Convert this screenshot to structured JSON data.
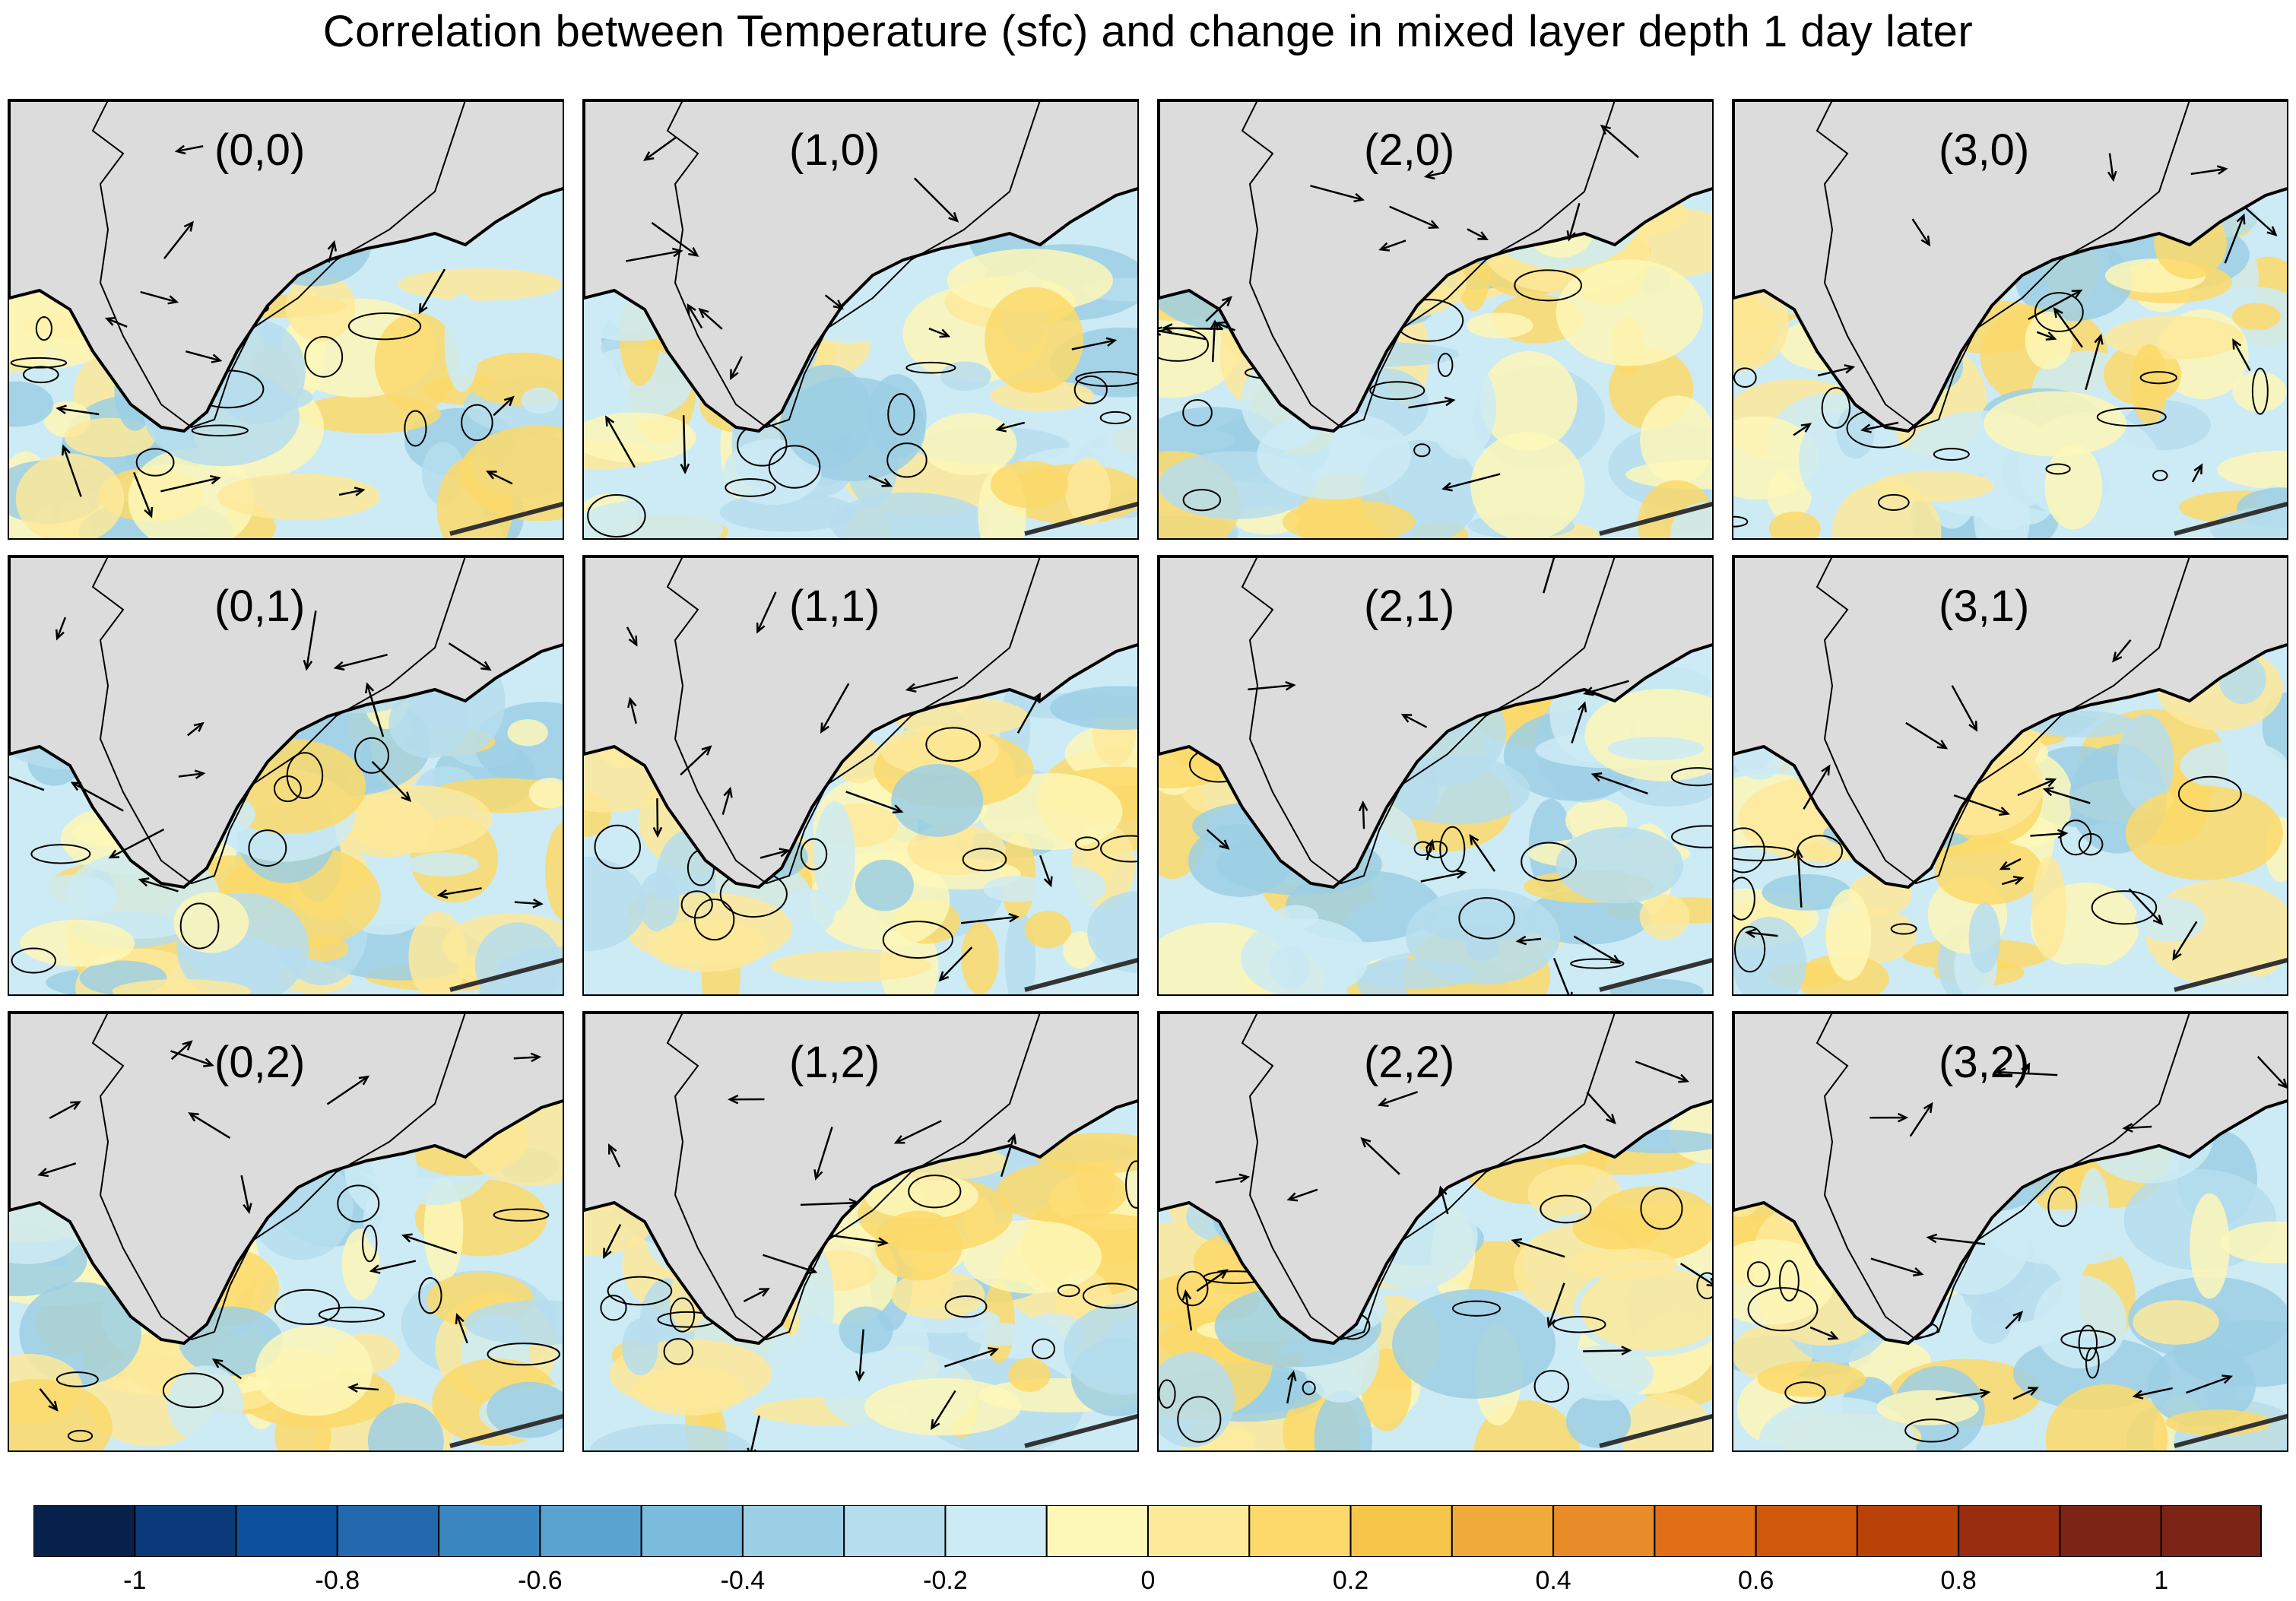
{
  "title": "Correlation between Temperature (sfc) and change in mixed layer depth 1 day later",
  "chart_data": {
    "type": "heatmap",
    "panels": [
      {
        "label": "(0,0)"
      },
      {
        "label": "(1,0)"
      },
      {
        "label": "(2,0)"
      },
      {
        "label": "(3,0)"
      },
      {
        "label": "(0,1)"
      },
      {
        "label": "(1,1)"
      },
      {
        "label": "(2,1)"
      },
      {
        "label": "(3,1)"
      },
      {
        "label": "(0,2)"
      },
      {
        "label": "(1,2)"
      },
      {
        "label": "(2,2)"
      },
      {
        "label": "(3,2)"
      }
    ],
    "colorbar": {
      "min": -1.1,
      "max": 1.1,
      "step": 0.1,
      "tick_labels": [
        "-1",
        "-0.8",
        "-0.6",
        "-0.4",
        "-0.2",
        "0",
        "0.2",
        "0.4",
        "0.6",
        "0.8",
        "1"
      ],
      "tick_values": [
        -1,
        -0.8,
        -0.6,
        -0.4,
        -0.2,
        0,
        0.2,
        0.4,
        0.6,
        0.8,
        1
      ],
      "colors": [
        "#08214a",
        "#0a3a7a",
        "#0c519c",
        "#2269ad",
        "#3b87c2",
        "#5aa2d0",
        "#7bbbdc",
        "#9ccfe4",
        "#b6dded",
        "#cdebf5",
        "#fdf7b8",
        "#fde99a",
        "#fcd96a",
        "#f6c64a",
        "#eeab3a",
        "#e88c2a",
        "#e06f17",
        "#d0580d",
        "#b94208",
        "#992d0f",
        "#7c2415"
      ]
    },
    "land_color": "#dcdcdc"
  }
}
